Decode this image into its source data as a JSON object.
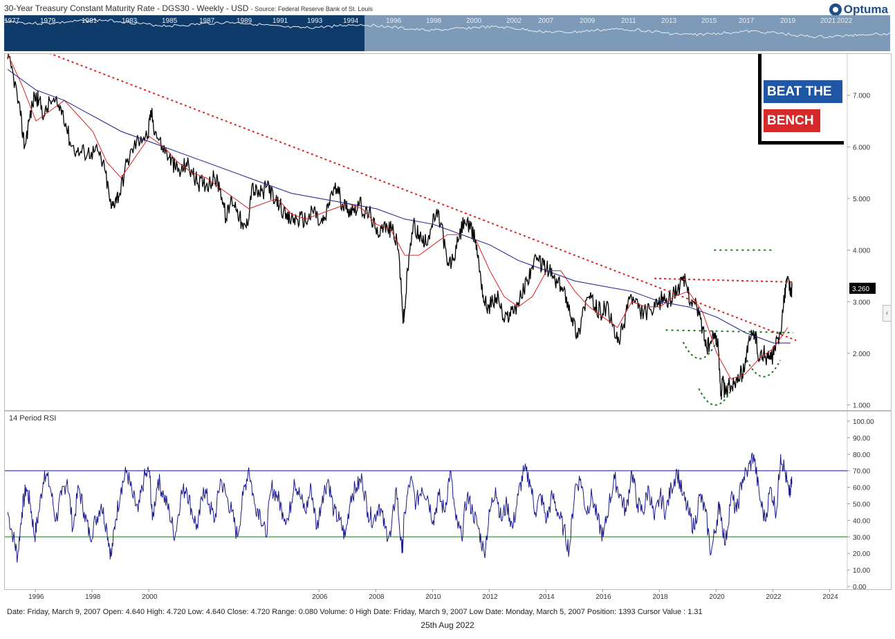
{
  "header": {
    "title": "30-Year Treasury Constant Maturity Rate - DGS30 - Weekly - USD",
    "source": "- Source: Federal Reserve Bank of St. Louis",
    "logo": "Optuma"
  },
  "navigator": {
    "years_selected": [
      "1977",
      "1979",
      "1981",
      "1983",
      "1985",
      "1987",
      "1989",
      "1991",
      "1993",
      "1994"
    ],
    "years_other": [
      "1996",
      "1998",
      "2000",
      "2002",
      "2007",
      "2009",
      "2011",
      "2013",
      "2015",
      "2017",
      "2019",
      "2021",
      "2022"
    ]
  },
  "badge": {
    "line1": "BEAT THE",
    "line2": "BENCH"
  },
  "colors": {
    "price": "#000000",
    "ma_fast": "#e02020",
    "ma_slow": "#1a1a8c",
    "trend_red": "#e02020",
    "trend_green": "#1e7a1e",
    "rsi": "#1a1a8c",
    "badge_blue": "#1f56a5",
    "badge_red": "#d62a2a"
  },
  "chart_data": [
    {
      "type": "line",
      "title": "30-Year Treasury Constant Maturity Rate - DGS30 - Weekly - USD",
      "xlabel": "",
      "ylabel": "",
      "xlim": [
        1994.9,
        2024.6
      ],
      "ylim": [
        0.9,
        7.8
      ],
      "yticks": [
        "1.000",
        "2.000",
        "3.000",
        "4.000",
        "5.000",
        "6.000",
        "7.000"
      ],
      "xticks": [
        "1996",
        "1998",
        "2000",
        "2006",
        "2008",
        "2010",
        "2012",
        "2014",
        "2016",
        "2018",
        "2020",
        "2022",
        "2024"
      ],
      "last_value": "3.260",
      "series": [
        {
          "key": "price",
          "x": [
            1995.0,
            1995.2,
            1995.45,
            1995.6,
            1995.75,
            1995.95,
            1996.1,
            1996.3,
            1996.5,
            1996.75,
            1996.95,
            1997.2,
            1997.45,
            1997.7,
            1997.95,
            1998.2,
            1998.45,
            1998.65,
            1998.8,
            1998.95,
            1999.2,
            1999.45,
            1999.7,
            1999.95,
            2000.05,
            2000.2,
            2000.45,
            2000.7,
            2000.9,
            2001.1,
            2001.3,
            2001.5,
            2001.7,
            2001.9,
            2002.1,
            2002.3,
            2002.5,
            2002.7,
            2002.9,
            2003.1,
            2003.3,
            2003.45,
            2003.6,
            2003.8,
            2004.0,
            2004.2,
            2004.4,
            2004.6,
            2004.8,
            2005.0,
            2005.2,
            2005.4,
            2005.6,
            2005.8,
            2006.0,
            2006.2,
            2006.4,
            2006.6,
            2006.8,
            2007.0,
            2007.2,
            2007.4,
            2007.6,
            2007.8,
            2008.0,
            2008.2,
            2008.4,
            2008.6,
            2008.8,
            2008.93,
            2008.98,
            2009.1,
            2009.3,
            2009.5,
            2009.7,
            2009.9,
            2010.1,
            2010.3,
            2010.5,
            2010.7,
            2010.9,
            2011.1,
            2011.3,
            2011.5,
            2011.65,
            2011.8,
            2011.95,
            2012.1,
            2012.3,
            2012.5,
            2012.7,
            2012.9,
            2013.1,
            2013.3,
            2013.5,
            2013.7,
            2013.9,
            2014.1,
            2014.3,
            2014.5,
            2014.7,
            2014.9,
            2015.1,
            2015.3,
            2015.5,
            2015.7,
            2015.9,
            2016.1,
            2016.3,
            2016.5,
            2016.7,
            2016.9,
            2017.1,
            2017.3,
            2017.5,
            2017.7,
            2017.9,
            2018.1,
            2018.3,
            2018.5,
            2018.7,
            2018.9,
            2019.1,
            2019.3,
            2019.5,
            2019.65,
            2019.8,
            2019.95,
            2020.05,
            2020.15,
            2020.2,
            2020.3,
            2020.45,
            2020.6,
            2020.75,
            2020.9,
            2021.05,
            2021.2,
            2021.35,
            2021.5,
            2021.65,
            2021.8,
            2021.95,
            2022.05,
            2022.2,
            2022.35,
            2022.45,
            2022.55,
            2022.6,
            2022.65
          ],
          "values": [
            7.7,
            7.4,
            6.6,
            6.0,
            6.5,
            7.0,
            6.9,
            6.6,
            6.9,
            6.8,
            6.7,
            6.1,
            5.9,
            5.9,
            5.9,
            5.9,
            5.5,
            4.8,
            5.0,
            5.1,
            5.7,
            6.0,
            6.2,
            6.2,
            6.7,
            6.3,
            6.0,
            5.8,
            5.6,
            5.5,
            5.7,
            5.5,
            5.3,
            5.3,
            5.3,
            5.4,
            5.2,
            4.6,
            5.0,
            4.8,
            4.4,
            4.5,
            5.2,
            5.1,
            5.1,
            5.3,
            4.9,
            4.9,
            4.6,
            4.6,
            4.6,
            4.6,
            4.6,
            4.8,
            4.5,
            4.6,
            5.1,
            5.2,
            4.9,
            4.8,
            4.8,
            4.9,
            4.7,
            4.7,
            4.3,
            4.5,
            4.4,
            4.4,
            3.9,
            2.7,
            2.7,
            3.6,
            4.5,
            4.3,
            4.1,
            4.4,
            4.7,
            4.5,
            3.7,
            3.8,
            4.2,
            4.6,
            4.4,
            4.2,
            3.6,
            3.0,
            2.9,
            3.0,
            3.1,
            2.6,
            2.8,
            2.9,
            3.1,
            3.4,
            3.7,
            3.8,
            3.7,
            3.6,
            3.4,
            3.3,
            3.1,
            2.7,
            2.3,
            2.9,
            3.1,
            2.9,
            2.8,
            2.9,
            2.6,
            2.2,
            2.5,
            3.1,
            3.0,
            2.8,
            2.8,
            2.8,
            2.9,
            3.1,
            3.0,
            3.2,
            3.3,
            3.4,
            3.0,
            2.9,
            2.5,
            2.1,
            2.2,
            2.4,
            2.1,
            1.2,
            1.5,
            1.2,
            1.4,
            1.4,
            1.6,
            1.6,
            2.0,
            2.3,
            2.4,
            1.9,
            2.0,
            1.9,
            1.9,
            2.1,
            2.3,
            2.9,
            3.4,
            3.4,
            3.1,
            3.3
          ],
          "color": "#000000"
        },
        {
          "key": "ma_fast",
          "x": [
            1995.0,
            1995.5,
            1996.0,
            1996.5,
            1997.0,
            1997.5,
            1998.0,
            1998.5,
            1999.0,
            1999.5,
            2000.0,
            2000.5,
            2001.0,
            2001.5,
            2002.0,
            2002.5,
            2003.0,
            2003.5,
            2004.0,
            2004.5,
            2005.0,
            2005.5,
            2006.0,
            2006.5,
            2007.0,
            2007.5,
            2008.0,
            2008.5,
            2009.0,
            2009.5,
            2010.0,
            2010.5,
            2011.0,
            2011.5,
            2012.0,
            2012.5,
            2013.0,
            2013.5,
            2014.0,
            2014.5,
            2015.0,
            2015.5,
            2016.0,
            2016.5,
            2017.0,
            2017.5,
            2018.0,
            2018.5,
            2019.0,
            2019.5,
            2020.0,
            2020.5,
            2021.0,
            2021.5,
            2022.0,
            2022.5
          ],
          "values": [
            7.8,
            7.2,
            6.5,
            6.7,
            6.9,
            6.6,
            6.3,
            5.7,
            5.4,
            5.8,
            6.2,
            6.0,
            5.7,
            5.5,
            5.4,
            5.2,
            5.0,
            4.8,
            4.9,
            5.0,
            4.7,
            4.6,
            4.7,
            4.8,
            4.9,
            4.8,
            4.5,
            4.4,
            3.9,
            3.9,
            4.1,
            4.3,
            4.3,
            4.2,
            3.6,
            3.1,
            2.9,
            3.1,
            3.6,
            3.6,
            3.2,
            2.9,
            2.7,
            2.5,
            3.0,
            2.9,
            2.9,
            3.1,
            3.2,
            2.8,
            2.0,
            1.5,
            1.6,
            1.9,
            2.1,
            2.5
          ],
          "color": "#e02020"
        },
        {
          "key": "ma_slow",
          "x": [
            1995.0,
            1996.0,
            1997.0,
            1998.0,
            1999.0,
            2000.0,
            2001.0,
            2002.0,
            2003.0,
            2004.0,
            2005.0,
            2006.0,
            2007.0,
            2008.0,
            2009.0,
            2010.0,
            2011.0,
            2012.0,
            2013.0,
            2014.0,
            2015.0,
            2016.0,
            2017.0,
            2018.0,
            2019.0,
            2020.0,
            2021.0,
            2022.0,
            2022.6
          ],
          "values": [
            7.5,
            7.1,
            6.9,
            6.6,
            6.3,
            6.1,
            5.9,
            5.7,
            5.5,
            5.3,
            5.1,
            5.0,
            4.9,
            4.8,
            4.6,
            4.5,
            4.3,
            4.1,
            3.8,
            3.6,
            3.4,
            3.3,
            3.2,
            3.0,
            2.9,
            2.7,
            2.4,
            2.2,
            2.2
          ],
          "color": "#1a1a8c"
        }
      ],
      "trendlines": [
        {
          "x": [
            1996.3,
            2022.8
          ],
          "values": [
            7.85,
            2.25
          ],
          "color": "#e02020",
          "style": "dotted"
        },
        {
          "x": [
            2017.8,
            2022.7
          ],
          "values": [
            3.45,
            3.38
          ],
          "color": "#e02020",
          "style": "dotted"
        },
        {
          "x": [
            2018.2,
            2022.7
          ],
          "values": [
            2.45,
            2.4
          ],
          "color": "#1e7a1e",
          "style": "dashed"
        },
        {
          "x": [
            2019.9,
            2022.0
          ],
          "values": [
            4.0,
            4.0
          ],
          "color": "#1e7a1e",
          "style": "dashed"
        }
      ],
      "arcs": [
        {
          "x": 2019.4,
          "y": 1.95
        },
        {
          "x": 2019.95,
          "y": 1.05
        },
        {
          "x": 2021.65,
          "y": 1.6
        }
      ]
    },
    {
      "type": "line",
      "title": "14 Period RSI",
      "xlabel": "",
      "ylabel": "",
      "xlim": [
        1994.9,
        2024.6
      ],
      "ylim": [
        0,
        105
      ],
      "yticks": [
        "0.00",
        "10.00",
        "20.00",
        "30.00",
        "40.00",
        "50.00",
        "60.00",
        "70.00",
        "80.00",
        "90.00",
        "100.00"
      ],
      "levels": [
        70,
        30
      ],
      "series": [
        {
          "key": "rsi",
          "x": [
            1995.0,
            1995.2,
            1995.35,
            1995.5,
            1995.65,
            1995.8,
            1995.95,
            1996.1,
            1996.3,
            1996.5,
            1996.7,
            1996.9,
            1997.1,
            1997.3,
            1997.5,
            1997.7,
            1997.9,
            1998.1,
            1998.3,
            1998.5,
            1998.65,
            1998.8,
            1999.0,
            1999.2,
            1999.4,
            1999.6,
            1999.8,
            2000.0,
            2000.1,
            2000.3,
            2000.5,
            2000.7,
            2000.9,
            2001.1,
            2001.3,
            2001.5,
            2001.7,
            2001.9,
            2002.1,
            2002.3,
            2002.5,
            2002.7,
            2002.9,
            2003.1,
            2003.3,
            2003.5,
            2003.7,
            2003.9,
            2004.1,
            2004.3,
            2004.5,
            2004.7,
            2004.9,
            2005.1,
            2005.3,
            2005.5,
            2005.7,
            2005.9,
            2006.1,
            2006.3,
            2006.5,
            2006.7,
            2006.9,
            2007.1,
            2007.3,
            2007.5,
            2007.7,
            2007.9,
            2008.1,
            2008.3,
            2008.5,
            2008.7,
            2008.9,
            2009.0,
            2009.2,
            2009.4,
            2009.6,
            2009.8,
            2010.0,
            2010.2,
            2010.4,
            2010.6,
            2010.8,
            2011.0,
            2011.2,
            2011.4,
            2011.6,
            2011.8,
            2012.0,
            2012.2,
            2012.4,
            2012.6,
            2012.8,
            2013.0,
            2013.2,
            2013.4,
            2013.6,
            2013.8,
            2014.0,
            2014.2,
            2014.4,
            2014.6,
            2014.8,
            2015.0,
            2015.2,
            2015.4,
            2015.6,
            2015.8,
            2016.0,
            2016.2,
            2016.4,
            2016.6,
            2016.8,
            2017.0,
            2017.2,
            2017.4,
            2017.6,
            2017.8,
            2018.0,
            2018.2,
            2018.4,
            2018.6,
            2018.8,
            2019.0,
            2019.2,
            2019.4,
            2019.6,
            2019.8,
            2020.0,
            2020.1,
            2020.3,
            2020.5,
            2020.7,
            2020.9,
            2021.1,
            2021.3,
            2021.5,
            2021.7,
            2021.9,
            2022.1,
            2022.25,
            2022.4,
            2022.55,
            2022.65
          ],
          "values": [
            45,
            30,
            18,
            45,
            60,
            50,
            30,
            45,
            70,
            60,
            40,
            55,
            65,
            35,
            60,
            45,
            30,
            40,
            50,
            35,
            18,
            40,
            60,
            70,
            55,
            45,
            65,
            70,
            40,
            65,
            55,
            45,
            30,
            55,
            60,
            45,
            35,
            60,
            50,
            40,
            65,
            55,
            45,
            30,
            55,
            72,
            50,
            45,
            30,
            60,
            55,
            45,
            40,
            65,
            55,
            45,
            60,
            35,
            55,
            65,
            45,
            40,
            30,
            55,
            60,
            65,
            45,
            40,
            50,
            35,
            30,
            60,
            20,
            45,
            65,
            50,
            60,
            55,
            40,
            55,
            45,
            70,
            40,
            30,
            55,
            45,
            35,
            20,
            45,
            60,
            40,
            50,
            35,
            55,
            70,
            65,
            45,
            55,
            40,
            55,
            45,
            35,
            22,
            60,
            65,
            45,
            55,
            40,
            30,
            50,
            65,
            55,
            45,
            70,
            50,
            45,
            60,
            40,
            55,
            45,
            60,
            70,
            55,
            45,
            35,
            55,
            45,
            20,
            40,
            50,
            25,
            55,
            45,
            65,
            70,
            80,
            55,
            40,
            60,
            45,
            80,
            70,
            55,
            62
          ],
          "color": "#1a1a8c"
        }
      ]
    }
  ],
  "xaxis": {
    "labels": [
      "1996",
      "1998",
      "2000",
      "2006",
      "2008",
      "2010",
      "2012",
      "2014",
      "2016",
      "2018",
      "2020",
      "2022",
      "2024"
    ]
  },
  "status_bar": "Date: Friday, March 9, 2007 Open: 4.640 High: 4.720 Low: 4.640 Close: 4.720 Range: 0.080 Volume: 0 High Date: Friday, March 9, 2007 Low Date: Monday, March 5, 2007 Position: 1393 Cursor Value : 1.31",
  "footer_date": "25th Aug 2022"
}
